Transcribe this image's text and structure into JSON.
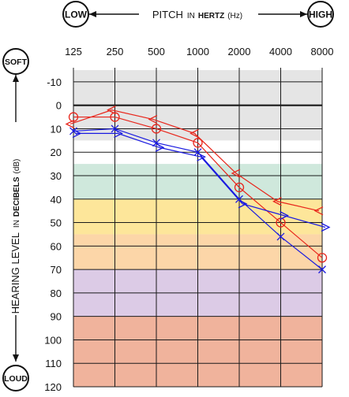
{
  "header": {
    "low_label": "LOW",
    "high_label": "HIGH",
    "pitch_prefix": "PITCH",
    "pitch_in": "IN",
    "pitch_unit_bold": "HERTZ",
    "pitch_unit_abbrev": "(Hz)"
  },
  "side": {
    "soft_label": "SOFT",
    "loud_label": "LOUD",
    "level_prefix": "HEARING LEVEL",
    "level_in": "IN",
    "level_unit_bold": "DECIBELS",
    "level_unit_abbrev": "(dB)"
  },
  "bands": [
    {
      "from": -15,
      "to": 15,
      "color": "#e5e5e5"
    },
    {
      "from": 25,
      "to": 40,
      "color": "#cfe8dc"
    },
    {
      "from": 40,
      "to": 55,
      "color": "#fde69a"
    },
    {
      "from": 55,
      "to": 70,
      "color": "#fcd6a8"
    },
    {
      "from": 70,
      "to": 90,
      "color": "#dccbe6"
    },
    {
      "from": 90,
      "to": 120,
      "color": "#f0b39c"
    }
  ],
  "chart_data": {
    "type": "line",
    "title": "",
    "xlabel": "PITCH IN HERTZ (Hz)",
    "ylabel": "HEARING LEVEL IN DECIBELS (dB)",
    "x_scale": "log2",
    "categories": [
      125,
      250,
      500,
      1000,
      2000,
      4000,
      8000
    ],
    "x_tick_labels": [
      "125",
      "250",
      "500",
      "1000",
      "2000",
      "4000",
      "8000"
    ],
    "y_ticks": [
      -10,
      0,
      10,
      20,
      30,
      40,
      50,
      60,
      70,
      80,
      90,
      100,
      110,
      120
    ],
    "y_tick_labels": [
      "-10",
      "0",
      "10",
      "20",
      "30",
      "40",
      "50",
      "60",
      "70",
      "80",
      "90",
      "100",
      "110",
      "120"
    ],
    "ylim": [
      -15,
      120
    ],
    "y_inverted": true,
    "grid": true,
    "series": [
      {
        "marker": "circle",
        "color": "#e8261c",
        "values": [
          5,
          5,
          10,
          16,
          35,
          50,
          65
        ]
      },
      {
        "marker": "x",
        "color": "#1a1ae0",
        "values": [
          11,
          10,
          16,
          20,
          40,
          56,
          70
        ]
      },
      {
        "marker": "bracket-left",
        "color": "#e8261c",
        "values": [
          8,
          2,
          6,
          12,
          29,
          41,
          45
        ]
      },
      {
        "marker": "bracket-right",
        "color": "#1a1ae0",
        "values": [
          12,
          12,
          18,
          22,
          42,
          47,
          52
        ]
      }
    ]
  }
}
